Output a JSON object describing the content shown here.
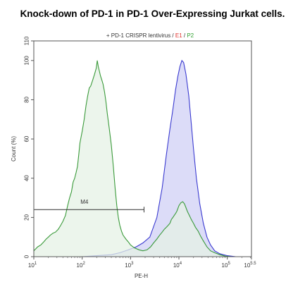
{
  "title": "Knock-down of PD-1 in PD-1 Over-Expressing Jurkat cells.",
  "chart_data": {
    "type": "area",
    "subtitle_parts": [
      {
        "text": "+ PD-1 CRISPR lentivirus / ",
        "color": "#333333"
      },
      {
        "text": "E1",
        "color": "#e0302c"
      },
      {
        "text": " / ",
        "color": "#333333"
      },
      {
        "text": "P2",
        "color": "#2ea02e"
      }
    ],
    "xlabel": "PE-H",
    "ylabel": "Count (%)",
    "x_scale": "log",
    "xlim": [
      10,
      316228
    ],
    "ylim": [
      0,
      110
    ],
    "x_ticks": [
      {
        "value": 10,
        "base": "10",
        "exp": "1"
      },
      {
        "value": 100,
        "base": "10",
        "exp": "2"
      },
      {
        "value": 1000,
        "base": "10",
        "exp": "3"
      },
      {
        "value": 10000,
        "base": "10",
        "exp": "4"
      },
      {
        "value": 100000,
        "base": "10",
        "exp": "5"
      },
      {
        "value": 316228,
        "base": "10",
        "exp": "5.5"
      }
    ],
    "y_ticks": [
      "0",
      "20",
      "40",
      "60",
      "80",
      "100",
      "110"
    ],
    "gate": {
      "label": "M4",
      "x_start": 10,
      "x_end": 1900,
      "y": 24
    },
    "series": [
      {
        "name": "E1",
        "color": "#3a3ad0",
        "fill": "#dcdcf8",
        "points": [
          [
            10,
            0
          ],
          [
            100,
            0
          ],
          [
            200,
            0.5
          ],
          [
            400,
            1
          ],
          [
            600,
            2
          ],
          [
            900,
            3.5
          ],
          [
            1300,
            5
          ],
          [
            1800,
            7
          ],
          [
            2500,
            10
          ],
          [
            3500,
            20
          ],
          [
            4500,
            35
          ],
          [
            5500,
            52
          ],
          [
            6500,
            65
          ],
          [
            7500,
            75
          ],
          [
            8500,
            85
          ],
          [
            9500,
            92
          ],
          [
            10500,
            97
          ],
          [
            11500,
            100
          ],
          [
            12500,
            99
          ],
          [
            14000,
            93
          ],
          [
            16000,
            82
          ],
          [
            18000,
            68
          ],
          [
            20000,
            55
          ],
          [
            23000,
            40
          ],
          [
            27000,
            27
          ],
          [
            32000,
            17
          ],
          [
            38000,
            10
          ],
          [
            45000,
            6
          ],
          [
            55000,
            3
          ],
          [
            70000,
            1.5
          ],
          [
            100000,
            0.5
          ],
          [
            150000,
            0
          ]
        ]
      },
      {
        "name": "P2",
        "color": "#3a9a3a",
        "fill": "#e6f2e6",
        "points": [
          [
            10,
            3
          ],
          [
            12,
            5
          ],
          [
            14,
            6
          ],
          [
            16,
            7.5
          ],
          [
            18,
            9
          ],
          [
            20,
            10
          ],
          [
            22,
            11
          ],
          [
            25,
            12
          ],
          [
            28,
            12.5
          ],
          [
            32,
            14
          ],
          [
            36,
            16
          ],
          [
            40,
            18
          ],
          [
            45,
            21
          ],
          [
            50,
            26
          ],
          [
            55,
            30
          ],
          [
            60,
            33
          ],
          [
            65,
            38
          ],
          [
            70,
            40
          ],
          [
            75,
            43
          ],
          [
            80,
            46
          ],
          [
            85,
            52
          ],
          [
            90,
            58
          ],
          [
            100,
            64
          ],
          [
            110,
            70
          ],
          [
            120,
            77
          ],
          [
            130,
            82
          ],
          [
            140,
            86
          ],
          [
            150,
            87
          ],
          [
            165,
            90
          ],
          [
            180,
            93
          ],
          [
            195,
            96
          ],
          [
            205,
            100
          ],
          [
            215,
            97
          ],
          [
            225,
            95
          ],
          [
            240,
            92
          ],
          [
            255,
            90
          ],
          [
            270,
            88
          ],
          [
            290,
            84
          ],
          [
            310,
            79
          ],
          [
            330,
            73
          ],
          [
            360,
            66
          ],
          [
            400,
            57
          ],
          [
            440,
            46
          ],
          [
            480,
            35
          ],
          [
            520,
            26
          ],
          [
            560,
            20
          ],
          [
            600,
            16
          ],
          [
            650,
            13
          ],
          [
            700,
            11
          ],
          [
            800,
            9
          ],
          [
            900,
            7.5
          ],
          [
            1000,
            6
          ],
          [
            1200,
            4.5
          ],
          [
            1500,
            3.5
          ],
          [
            1800,
            3
          ],
          [
            2200,
            3.5
          ],
          [
            2600,
            5
          ],
          [
            3000,
            7
          ],
          [
            3500,
            9
          ],
          [
            4000,
            11
          ],
          [
            4500,
            12.5
          ],
          [
            5000,
            14
          ],
          [
            5500,
            15
          ],
          [
            6000,
            16
          ],
          [
            6500,
            17
          ],
          [
            7000,
            19
          ],
          [
            7500,
            20
          ],
          [
            8000,
            21
          ],
          [
            8500,
            22
          ],
          [
            9000,
            23
          ],
          [
            9500,
            24.5
          ],
          [
            10000,
            26
          ],
          [
            11000,
            27.5
          ],
          [
            12000,
            28
          ],
          [
            13000,
            27
          ],
          [
            14000,
            25
          ],
          [
            15000,
            23
          ],
          [
            16500,
            21
          ],
          [
            18000,
            19
          ],
          [
            20000,
            17
          ],
          [
            22000,
            15
          ],
          [
            25000,
            13
          ],
          [
            28000,
            10.5
          ],
          [
            32000,
            8
          ],
          [
            38000,
            5
          ],
          [
            45000,
            3
          ],
          [
            55000,
            2
          ],
          [
            70000,
            1
          ],
          [
            90000,
            0.3
          ],
          [
            120000,
            0
          ]
        ]
      }
    ]
  }
}
